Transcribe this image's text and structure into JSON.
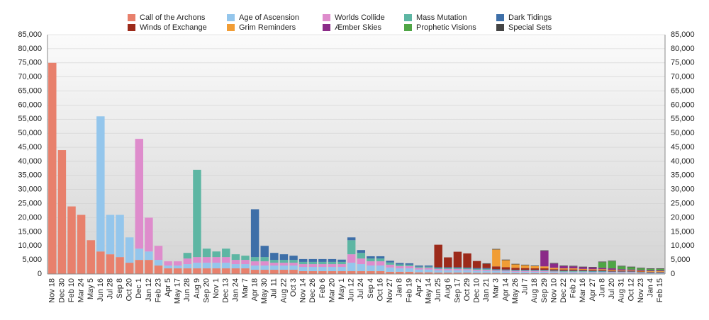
{
  "chart_data": {
    "type": "stacked-bar",
    "categories": [
      "Nov 18",
      "Dec 30",
      "Feb 10",
      "Mar 24",
      "May 5",
      "Jun 16",
      "Jul 28",
      "Sep 8",
      "Oct 20",
      "Dec 1",
      "Jan 12",
      "Feb 23",
      "Apr 5",
      "May 17",
      "Jun 28",
      "Aug 9",
      "Sep 20",
      "Nov 1",
      "Dec 13",
      "Jan 24",
      "Mar 7",
      "Apr 18",
      "May 30",
      "Jul 11",
      "Aug 22",
      "Oct 3",
      "Nov 14",
      "Dec 26",
      "Feb 6",
      "Mar 20",
      "May 1",
      "Jun 12",
      "Jul 24",
      "Sep 4",
      "Oct 16",
      "Nov 27",
      "Jan 8",
      "Feb 19",
      "Apr 2",
      "May 14",
      "Jun 25",
      "Aug 6",
      "Sep 17",
      "Oct 29",
      "Dec 10",
      "Jan 21",
      "Mar 3",
      "Apr 14",
      "May 26",
      "Jul 7",
      "Aug 18",
      "Sep 29",
      "Nov 10",
      "Dec 22",
      "Feb 2",
      "Mar 16",
      "Apr 27",
      "Jun 8",
      "Jul 20",
      "Aug 31",
      "Oct 12",
      "Nov 23",
      "Jan 4",
      "Feb 15"
    ],
    "series": [
      {
        "name": "Call of the Archons",
        "color": "#e8806c",
        "values": [
          75000,
          44000,
          24000,
          21000,
          12000,
          8000,
          7000,
          6000,
          4000,
          5000,
          5000,
          3000,
          2000,
          2000,
          2000,
          2000,
          2000,
          2000,
          2000,
          2000,
          2000,
          1500,
          1500,
          1500,
          1500,
          1500,
          1000,
          1000,
          1000,
          1000,
          1000,
          1000,
          1000,
          1000,
          1000,
          800,
          800,
          800,
          600,
          600,
          500,
          500,
          500,
          500,
          400,
          400,
          400,
          300,
          300,
          300,
          300,
          300,
          300,
          200,
          200,
          200,
          200,
          200,
          200,
          200,
          200,
          200,
          100,
          100
        ]
      },
      {
        "name": "Age of Ascension",
        "color": "#94c6ec",
        "values": [
          0,
          0,
          0,
          0,
          0,
          48000,
          14000,
          15000,
          9000,
          4000,
          3000,
          2000,
          1000,
          1000,
          1500,
          2000,
          2000,
          2000,
          2000,
          1500,
          1500,
          1500,
          1500,
          1500,
          1500,
          1500,
          1500,
          1500,
          1500,
          1500,
          1500,
          3000,
          2500,
          2000,
          2000,
          1500,
          1200,
          1200,
          1000,
          1000,
          800,
          800,
          800,
          800,
          700,
          700,
          600,
          600,
          500,
          500,
          500,
          500,
          400,
          400,
          400,
          400,
          300,
          300,
          300,
          300,
          300,
          200,
          200,
          200
        ]
      },
      {
        "name": "Worlds Collide",
        "color": "#de8ccc",
        "values": [
          0,
          0,
          0,
          0,
          0,
          0,
          0,
          0,
          0,
          39000,
          12000,
          5000,
          1500,
          1500,
          2000,
          2000,
          2000,
          2000,
          2000,
          1500,
          1500,
          1500,
          1500,
          1000,
          1000,
          1000,
          1000,
          1000,
          1000,
          1000,
          1000,
          3000,
          2000,
          1500,
          1500,
          1000,
          800,
          800,
          600,
          600,
          500,
          500,
          500,
          400,
          400,
          400,
          300,
          300,
          300,
          300,
          300,
          300,
          200,
          200,
          200,
          200,
          200,
          200,
          200,
          200,
          200,
          100,
          100,
          100
        ]
      },
      {
        "name": "Mass Mutation",
        "color": "#5db6a3",
        "values": [
          0,
          0,
          0,
          0,
          0,
          0,
          0,
          0,
          0,
          0,
          0,
          0,
          0,
          0,
          2000,
          31000,
          3000,
          2000,
          3000,
          2000,
          1500,
          1500,
          1500,
          1000,
          1000,
          1000,
          800,
          800,
          800,
          800,
          800,
          5000,
          2000,
          1000,
          1000,
          800,
          600,
          500,
          400,
          400,
          300,
          300,
          300,
          300,
          300,
          300,
          200,
          200,
          200,
          200,
          200,
          200,
          200,
          200,
          200,
          200,
          200,
          200,
          100,
          100,
          100,
          100,
          100,
          100
        ]
      },
      {
        "name": "Dark Tidings",
        "color": "#3e6fa8",
        "values": [
          0,
          0,
          0,
          0,
          0,
          0,
          0,
          0,
          0,
          0,
          0,
          0,
          0,
          0,
          0,
          0,
          0,
          0,
          0,
          0,
          0,
          17000,
          4000,
          2500,
          2000,
          1500,
          1000,
          1000,
          1000,
          1000,
          800,
          1000,
          1000,
          800,
          800,
          600,
          500,
          500,
          400,
          400,
          300,
          300,
          300,
          300,
          300,
          300,
          200,
          200,
          200,
          200,
          200,
          200,
          200,
          200,
          200,
          200,
          200,
          200,
          100,
          100,
          100,
          100,
          100,
          100
        ]
      },
      {
        "name": "Winds of Exchange",
        "color": "#9c2a1a",
        "values": [
          0,
          0,
          0,
          0,
          0,
          0,
          0,
          0,
          0,
          0,
          0,
          0,
          0,
          0,
          0,
          0,
          0,
          0,
          0,
          0,
          0,
          0,
          0,
          0,
          0,
          0,
          0,
          0,
          0,
          0,
          0,
          0,
          0,
          0,
          0,
          0,
          0,
          0,
          0,
          0,
          8000,
          3500,
          5500,
          5000,
          2500,
          1500,
          1000,
          800,
          700,
          600,
          500,
          500,
          400,
          400,
          400,
          300,
          300,
          300,
          300,
          200,
          200,
          200,
          200,
          200
        ]
      },
      {
        "name": "Grim Reminders",
        "color": "#f19d35",
        "values": [
          0,
          0,
          0,
          0,
          0,
          0,
          0,
          0,
          0,
          0,
          0,
          0,
          0,
          0,
          0,
          0,
          0,
          0,
          0,
          0,
          0,
          0,
          0,
          0,
          0,
          0,
          0,
          0,
          0,
          0,
          0,
          0,
          0,
          0,
          0,
          0,
          0,
          0,
          0,
          0,
          0,
          0,
          0,
          0,
          0,
          0,
          6000,
          2500,
          1200,
          1000,
          800,
          700,
          500,
          400,
          400,
          300,
          300,
          300,
          300,
          200,
          200,
          200,
          200,
          200
        ]
      },
      {
        "name": "Æmber Skies",
        "color": "#8b2b88",
        "values": [
          0,
          0,
          0,
          0,
          0,
          0,
          0,
          0,
          0,
          0,
          0,
          0,
          0,
          0,
          0,
          0,
          0,
          0,
          0,
          0,
          0,
          0,
          0,
          0,
          0,
          0,
          0,
          0,
          0,
          0,
          0,
          0,
          0,
          0,
          0,
          0,
          0,
          0,
          0,
          0,
          0,
          0,
          0,
          0,
          0,
          0,
          0,
          0,
          0,
          0,
          0,
          5500,
          1500,
          800,
          700,
          600,
          600,
          500,
          500,
          400,
          300,
          300,
          300,
          300
        ]
      },
      {
        "name": "Prophetic Visions",
        "color": "#4fa545",
        "values": [
          0,
          0,
          0,
          0,
          0,
          0,
          0,
          0,
          0,
          0,
          0,
          0,
          0,
          0,
          0,
          0,
          0,
          0,
          0,
          0,
          0,
          0,
          0,
          0,
          0,
          0,
          0,
          0,
          0,
          0,
          0,
          0,
          0,
          0,
          0,
          0,
          0,
          0,
          0,
          0,
          0,
          0,
          0,
          0,
          0,
          0,
          0,
          0,
          0,
          0,
          0,
          0,
          0,
          0,
          0,
          0,
          0,
          2000,
          2500,
          1000,
          800,
          600,
          500,
          500
        ]
      },
      {
        "name": "Special Sets",
        "color": "#444444",
        "values": [
          0,
          0,
          0,
          0,
          0,
          0,
          0,
          0,
          0,
          0,
          0,
          0,
          0,
          0,
          0,
          0,
          0,
          0,
          0,
          0,
          0,
          0,
          0,
          0,
          0,
          0,
          0,
          0,
          0,
          0,
          0,
          0,
          0,
          0,
          0,
          0,
          0,
          0,
          0,
          0,
          0,
          0,
          0,
          0,
          0,
          200,
          200,
          200,
          200,
          200,
          200,
          200,
          200,
          200,
          200,
          200,
          200,
          200,
          200,
          200,
          200,
          200,
          200,
          200
        ]
      }
    ],
    "ylim": [
      0,
      85000
    ],
    "yticks": [
      0,
      {
        "value": 5000,
        "label": "5,000"
      },
      {
        "value": 10000,
        "label": "10,000"
      },
      {
        "value": 15000,
        "label": "15,000"
      },
      {
        "value": 20000,
        "label": "20,000"
      },
      {
        "value": 25000,
        "label": "25,000"
      },
      {
        "value": 30000,
        "label": "30,000"
      },
      {
        "value": 35000,
        "label": "35,000"
      },
      {
        "value": 40000,
        "label": "40,000"
      },
      {
        "value": 45000,
        "label": "45,000"
      },
      {
        "value": 50000,
        "label": "50,000"
      },
      {
        "value": 55000,
        "label": "55,000"
      },
      {
        "value": 60000,
        "label": "60,000"
      },
      {
        "value": 65000,
        "label": "65,000"
      },
      {
        "value": 70000,
        "label": "70,000"
      },
      {
        "value": 75000,
        "label": "75,000"
      },
      {
        "value": 80000,
        "label": "80,000"
      },
      {
        "value": 85000,
        "label": "85,000"
      }
    ],
    "grid": true,
    "legend": "top"
  }
}
